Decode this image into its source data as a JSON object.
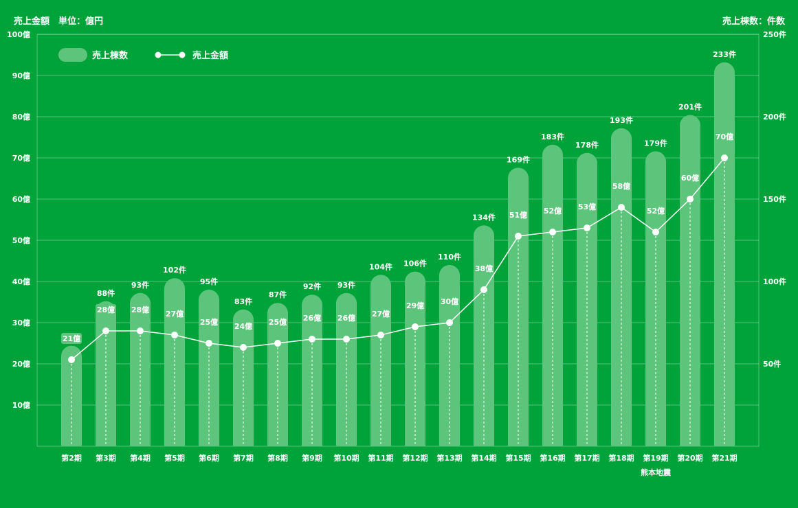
{
  "chart_data": {
    "type": "bar+line",
    "left_unit_label": "売上金額　単位：億円",
    "right_unit_label": "売上棟数：件数",
    "legend": {
      "bar": "売上棟数",
      "line": "売上金額"
    },
    "categories": [
      "第2期",
      "第3期",
      "第4期",
      "第5期",
      "第6期",
      "第7期",
      "第8期",
      "第9期",
      "第10期",
      "第11期",
      "第12期",
      "第13期",
      "第14期",
      "第15期",
      "第16期",
      "第17期",
      "第18期",
      "第19期",
      "第20期",
      "第21期"
    ],
    "annotation": {
      "category": "第19期",
      "text": "熊本地震"
    },
    "left_axis": {
      "min": 0,
      "max": 100,
      "ticks": [
        10,
        20,
        30,
        40,
        50,
        60,
        70,
        80,
        90,
        100
      ],
      "suffix": "億"
    },
    "right_axis": {
      "min": 0,
      "max": 250,
      "ticks": [
        50,
        100,
        150,
        200,
        250
      ],
      "suffix": "件"
    },
    "series": [
      {
        "name": "売上棟数",
        "type": "bar",
        "axis": "right",
        "suffix": "件",
        "values": [
          61,
          88,
          93,
          102,
          95,
          83,
          87,
          92,
          93,
          104,
          106,
          110,
          134,
          169,
          183,
          178,
          193,
          179,
          201,
          233
        ]
      },
      {
        "name": "売上金額",
        "type": "line",
        "axis": "left",
        "suffix": "億",
        "values": [
          21,
          28,
          28,
          27,
          25,
          24,
          25,
          26,
          26,
          27,
          29,
          30,
          38,
          51,
          52,
          53,
          58,
          52,
          60,
          70
        ]
      }
    ]
  }
}
